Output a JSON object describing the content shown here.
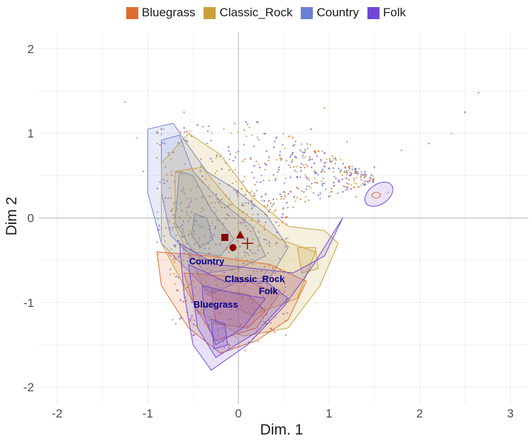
{
  "chart_data": {
    "type": "scatter",
    "title": "",
    "xlabel": "Dim. 1",
    "ylabel": "Dim 2",
    "xlim": [
      -2.2,
      3.2
    ],
    "ylim": [
      -2.2,
      2.2
    ],
    "x_ticks": [
      "-2",
      "-1",
      "0",
      "1",
      "2",
      "3"
    ],
    "y_ticks": [
      "-2",
      "-1",
      "0",
      "1",
      "2"
    ],
    "grid": true,
    "legend_position": "top",
    "legend": [
      {
        "name": "Bluegrass",
        "color": "#e06c2e"
      },
      {
        "name": "Classic_Rock",
        "color": "#c9a13b"
      },
      {
        "name": "Country",
        "color": "#6b80d4"
      },
      {
        "name": "Folk",
        "color": "#7048d4"
      }
    ],
    "density_contours": [
      {
        "series": "Bluegrass",
        "color": "#e06c2e",
        "center": [
          0.05,
          -1.0
        ],
        "levels": 3
      },
      {
        "series": "Classic_Rock",
        "color": "#c9a13b",
        "center": [
          0.2,
          -0.6
        ],
        "levels": 3
      },
      {
        "series": "Country",
        "color": "#6b80d4",
        "center": [
          -0.35,
          -0.2
        ],
        "levels": 4
      },
      {
        "series": "Folk",
        "color": "#7048d4",
        "center": [
          -0.2,
          -1.3
        ],
        "levels": 4
      }
    ],
    "centroids": [
      {
        "series": "Bluegrass",
        "shape": "square",
        "x": -0.15,
        "y": -0.23
      },
      {
        "series": "Classic_Rock",
        "shape": "triangle",
        "x": 0.02,
        "y": -0.2
      },
      {
        "series": "Country",
        "shape": "circle",
        "x": -0.06,
        "y": -0.35
      },
      {
        "series": "Folk",
        "shape": "cross",
        "x": 0.1,
        "y": -0.3
      }
    ],
    "centroid_color": "#8b0000",
    "genre_labels": [
      {
        "text": "Country",
        "x": -0.35,
        "y": -0.55
      },
      {
        "text": "Classic_Rock",
        "x": 0.18,
        "y": -0.76
      },
      {
        "text": "Folk",
        "x": 0.33,
        "y": -0.9
      },
      {
        "text": "Bluegrass",
        "x": -0.25,
        "y": -1.06
      }
    ],
    "outlier_points": [
      [
        -1.25,
        1.37
      ],
      [
        -1.12,
        0.95
      ],
      [
        -1.05,
        0.55
      ],
      [
        -0.85,
        1.05
      ],
      [
        -0.6,
        1.25
      ],
      [
        0.95,
        1.3
      ],
      [
        1.2,
        0.9
      ],
      [
        1.5,
        0.6
      ],
      [
        1.8,
        0.8
      ],
      [
        2.35,
        1.0
      ],
      [
        2.1,
        0.88
      ],
      [
        2.5,
        1.25
      ],
      [
        2.65,
        1.48
      ],
      [
        1.65,
        0.3
      ],
      [
        1.4,
        0.4
      ],
      [
        0.8,
        1.05
      ],
      [
        0.6,
        0.95
      ],
      [
        1.05,
        0.7
      ],
      [
        1.3,
        0.25
      ],
      [
        0.45,
        0.6
      ]
    ]
  }
}
